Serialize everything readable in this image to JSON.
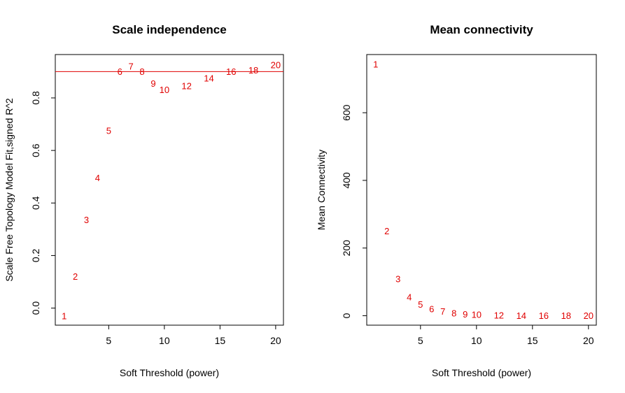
{
  "colors": {
    "points": "#e00000",
    "threshold_line": "#e00000",
    "axes": "#000000"
  },
  "chart_data": [
    {
      "type": "scatter",
      "title": "Scale independence",
      "xlabel": "Soft Threshold (power)",
      "ylabel": "Scale Free Topology Model Fit,signed R^2",
      "xlim": [
        0.2,
        20.7
      ],
      "ylim": [
        -0.065,
        0.965
      ],
      "xticks": [
        5,
        10,
        15,
        20
      ],
      "yticks": [
        0.0,
        0.2,
        0.4,
        0.6,
        0.8
      ],
      "ytick_labels": [
        "0.0",
        "0.2",
        "0.4",
        "0.6",
        "0.8"
      ],
      "grid": false,
      "hline": 0.9,
      "points": [
        {
          "x": 1,
          "y": -0.03,
          "label": "1"
        },
        {
          "x": 2,
          "y": 0.12,
          "label": "2"
        },
        {
          "x": 3,
          "y": 0.335,
          "label": "3"
        },
        {
          "x": 4,
          "y": 0.495,
          "label": "4"
        },
        {
          "x": 5,
          "y": 0.675,
          "label": "5"
        },
        {
          "x": 6,
          "y": 0.9,
          "label": "6"
        },
        {
          "x": 7,
          "y": 0.92,
          "label": "7"
        },
        {
          "x": 8,
          "y": 0.9,
          "label": "8"
        },
        {
          "x": 9,
          "y": 0.855,
          "label": "9"
        },
        {
          "x": 10,
          "y": 0.83,
          "label": "10"
        },
        {
          "x": 12,
          "y": 0.845,
          "label": "12"
        },
        {
          "x": 14,
          "y": 0.875,
          "label": "14"
        },
        {
          "x": 16,
          "y": 0.9,
          "label": "16"
        },
        {
          "x": 18,
          "y": 0.905,
          "label": "18"
        },
        {
          "x": 20,
          "y": 0.925,
          "label": "20"
        }
      ]
    },
    {
      "type": "scatter",
      "title": "Mean connectivity",
      "xlabel": "Soft Threshold (power)",
      "ylabel": "Mean Connectivity",
      "xlim": [
        0.2,
        20.7
      ],
      "ylim": [
        -28,
        772
      ],
      "xticks": [
        5,
        10,
        15,
        20
      ],
      "yticks": [
        0,
        200,
        400,
        600
      ],
      "ytick_labels": [
        "0",
        "200",
        "400",
        "600"
      ],
      "grid": false,
      "points": [
        {
          "x": 1,
          "y": 743,
          "label": "1"
        },
        {
          "x": 2,
          "y": 250,
          "label": "2"
        },
        {
          "x": 3,
          "y": 108,
          "label": "3"
        },
        {
          "x": 4,
          "y": 55,
          "label": "4"
        },
        {
          "x": 5,
          "y": 33,
          "label": "5"
        },
        {
          "x": 6,
          "y": 20,
          "label": "6"
        },
        {
          "x": 7,
          "y": 12,
          "label": "7"
        },
        {
          "x": 8,
          "y": 7,
          "label": "8"
        },
        {
          "x": 9,
          "y": 4,
          "label": "9"
        },
        {
          "x": 10,
          "y": 3,
          "label": "10"
        },
        {
          "x": 12,
          "y": 1,
          "label": "12"
        },
        {
          "x": 14,
          "y": 0,
          "label": "14"
        },
        {
          "x": 16,
          "y": 0,
          "label": "16"
        },
        {
          "x": 18,
          "y": 0,
          "label": "18"
        },
        {
          "x": 20,
          "y": 0,
          "label": "20"
        }
      ]
    }
  ]
}
